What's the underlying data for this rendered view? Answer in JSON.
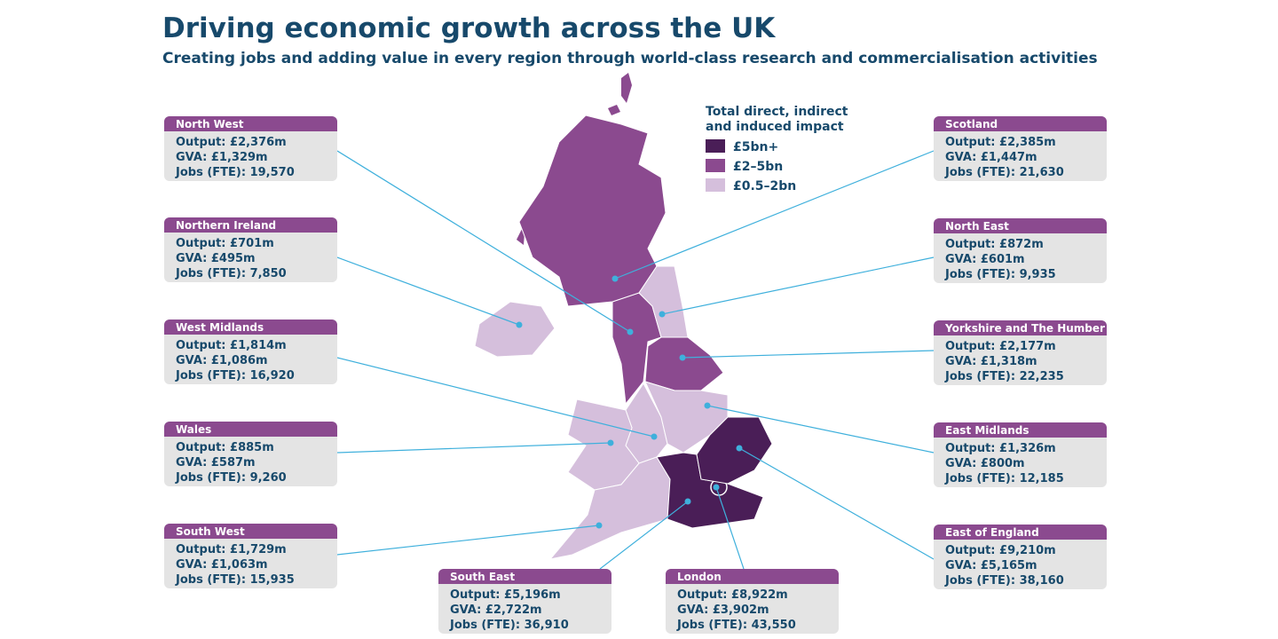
{
  "header": {
    "title": "Driving economic growth across the UK",
    "subtitle": "Creating jobs and adding value in every region through world-class research and commercialisation activities"
  },
  "legend": {
    "title": [
      "Total direct, indirect",
      "and induced impact"
    ],
    "items": [
      {
        "label": "£5bn+",
        "color": "#4a1e57"
      },
      {
        "label": "£2–5bn",
        "color": "#8b4a8f"
      },
      {
        "label": "£0.5–2bn",
        "color": "#d5bfdc"
      }
    ]
  },
  "regions": [
    {
      "name": "North West",
      "color": "#8b4a8f",
      "lines": [
        "Output: £2,376m",
        "GVA: £1,329m",
        "Jobs (FTE): 19,570"
      ]
    },
    {
      "name": "Northern Ireland",
      "color": "#d5bfdc",
      "lines": [
        "Output: £701m",
        "GVA: £495m",
        "Jobs (FTE): 7,850"
      ]
    },
    {
      "name": "West Midlands",
      "color": "#d5bfdc",
      "lines": [
        "Output: £1,814m",
        "GVA: £1,086m",
        "Jobs (FTE): 16,920"
      ]
    },
    {
      "name": "Wales",
      "color": "#d5bfdc",
      "lines": [
        "Output: £885m",
        "GVA: £587m",
        "Jobs (FTE): 9,260"
      ]
    },
    {
      "name": "South West",
      "color": "#d5bfdc",
      "lines": [
        "Output: £1,729m",
        "GVA: £1,063m",
        "Jobs (FTE): 15,935"
      ]
    },
    {
      "name": "South East",
      "color": "#4a1e57",
      "lines": [
        "Output: £5,196m",
        "GVA: £2,722m",
        "Jobs (FTE): 36,910"
      ]
    },
    {
      "name": "London",
      "color": "#4a1e57",
      "lines": [
        "Output: £8,922m",
        "GVA: £3,902m",
        "Jobs (FTE): 43,550"
      ]
    },
    {
      "name": "Scotland",
      "color": "#8b4a8f",
      "lines": [
        "Output: £2,385m",
        "GVA: £1,447m",
        "Jobs (FTE): 21,630"
      ]
    },
    {
      "name": "North East",
      "color": "#d5bfdc",
      "lines": [
        "Output: £872m",
        "GVA: £601m",
        "Jobs (FTE): 9,935"
      ]
    },
    {
      "name": "Yorkshire and The Humber",
      "color": "#8b4a8f",
      "lines": [
        "Output: £2,177m",
        "GVA: £1,318m",
        "Jobs (FTE): 22,235"
      ]
    },
    {
      "name": "East Midlands",
      "color": "#d5bfdc",
      "lines": [
        "Output: £1,326m",
        "GVA: £800m",
        "Jobs (FTE): 12,185"
      ]
    },
    {
      "name": "East of England",
      "color": "#4a1e57",
      "lines": [
        "Output: £9,210m",
        "GVA: £5,165m",
        "Jobs (FTE): 38,160"
      ]
    }
  ]
}
